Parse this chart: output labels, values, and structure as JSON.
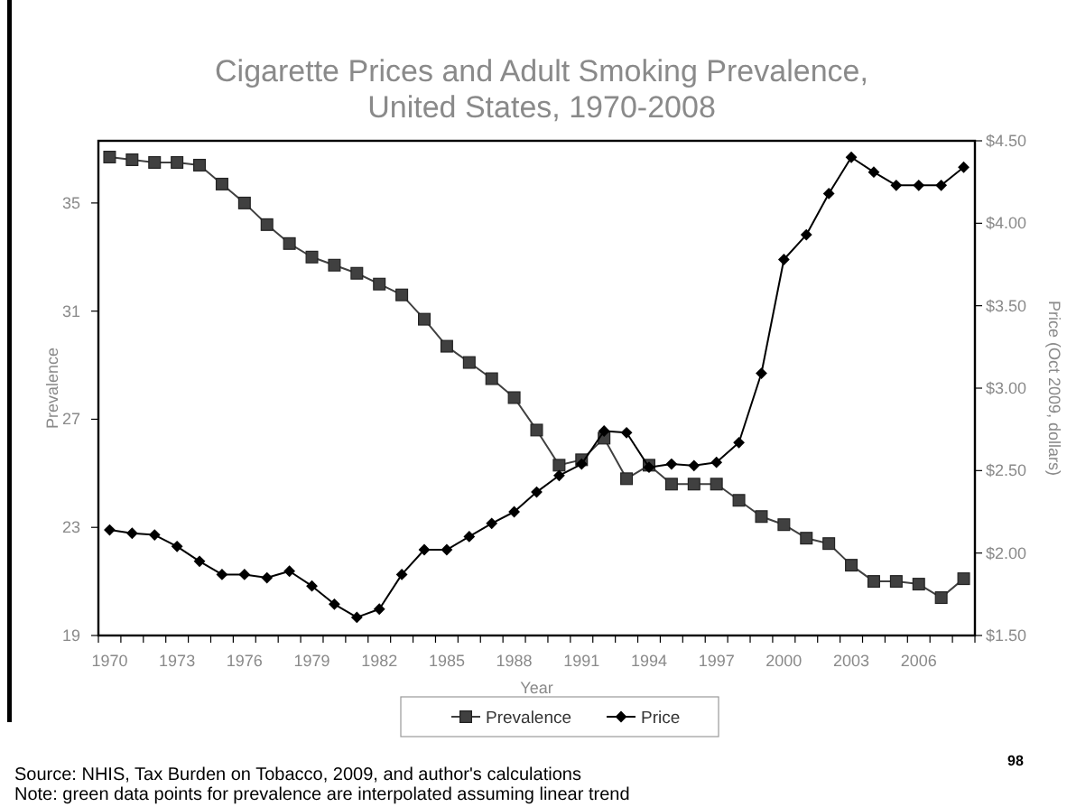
{
  "chart_data": {
    "type": "line",
    "title": "Cigarette Prices and Adult Smoking Prevalence,\nUnited States, 1970-2008",
    "xlabel": "Year",
    "ylabel": "Prevalence",
    "y2label": "Price (Oct 2009, dollars)",
    "categories": [
      "1970",
      null,
      null,
      "1973",
      null,
      null,
      "1976",
      null,
      null,
      "1979",
      null,
      null,
      "1982",
      null,
      null,
      "1985",
      null,
      null,
      "1988",
      null,
      null,
      "1991",
      null,
      null,
      "1994",
      null,
      null,
      "1997",
      null,
      null,
      "2000",
      null,
      null,
      "2003",
      null,
      null,
      "2006",
      null,
      null
    ],
    "series": [
      {
        "name": "Prevalence",
        "color": "#404040",
        "marker": "square",
        "values": [
          36.7,
          36.6,
          36.5,
          36.5,
          36.4,
          35.7,
          35.0,
          34.2,
          33.5,
          33.0,
          32.7,
          32.4,
          32.0,
          31.6,
          30.7,
          29.7,
          29.1,
          28.5,
          27.8,
          26.6,
          25.3,
          25.5,
          26.3,
          24.8,
          25.3,
          24.6,
          24.6,
          24.6,
          24.0,
          23.4,
          23.1,
          22.6,
          22.4,
          21.6,
          21.0,
          21.0,
          20.9,
          20.4,
          21.1
        ]
      },
      {
        "name": "Price",
        "color": "#000000",
        "marker": "diamond",
        "axis": "y2",
        "values": [
          2.14,
          2.12,
          2.11,
          2.04,
          1.95,
          1.87,
          1.87,
          1.85,
          1.89,
          1.8,
          1.69,
          1.61,
          1.66,
          1.87,
          2.02,
          2.02,
          2.1,
          2.18,
          2.25,
          2.37,
          2.47,
          2.54,
          2.74,
          2.73,
          2.52,
          2.54,
          2.53,
          2.55,
          2.67,
          3.09,
          3.78,
          3.93,
          4.18,
          4.4,
          4.31,
          4.23,
          4.23,
          4.23,
          4.34
        ]
      }
    ],
    "ylim": [
      19,
      37.3
    ],
    "yticks": [
      19,
      23,
      27,
      31,
      35
    ],
    "y2lim": [
      1.5,
      4.5
    ],
    "y2ticks": [
      {
        "value": 1.5,
        "label": "$1.50"
      },
      {
        "value": 2,
        "label": "$2.00"
      },
      {
        "value": 2.5,
        "label": "$2.50"
      },
      {
        "value": 3,
        "label": "$3.00"
      },
      {
        "value": 3.5,
        "label": "$3.50"
      },
      {
        "value": 4,
        "label": "$4.00"
      },
      {
        "value": 4.5,
        "label": "$4.50"
      }
    ],
    "legend": "bottom",
    "grid": false,
    "annotations": [
      "98",
      "Source: NHIS, Tax Burden on Tobacco, 2009, and author's calculations",
      "Note: green data points for prevalence are interpolated assuming linear trend"
    ]
  }
}
